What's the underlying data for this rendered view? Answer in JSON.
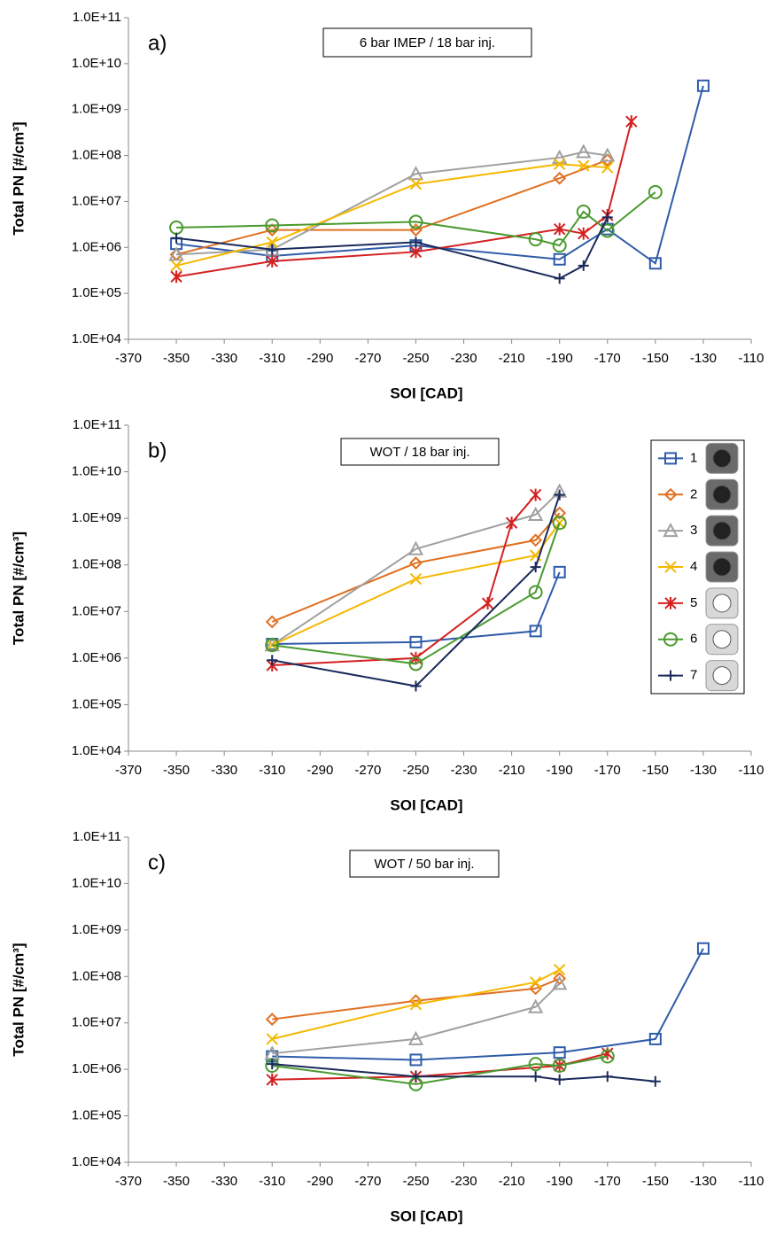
{
  "chart_data": [
    {
      "type": "line",
      "label": "a)",
      "annotation": "6 bar IMEP / 18 bar inj.",
      "xlabel": "SOI [CAD]",
      "ylabel": "Total PN [#/cm³]",
      "yscale": "log",
      "xlim": [
        -370,
        -110
      ],
      "xticks": [
        -370,
        -350,
        -330,
        -310,
        -290,
        -270,
        -250,
        -230,
        -210,
        -190,
        -170,
        -150,
        -130,
        -110
      ],
      "ylim": [
        10000,
        100000000000
      ],
      "yticks": [
        {
          "value": 10000,
          "label": "1.0E+04"
        },
        {
          "value": 100000,
          "label": "1.0E+05"
        },
        {
          "value": 1000000,
          "label": "1.0E+06"
        },
        {
          "value": 10000000,
          "label": "1.0E+07"
        },
        {
          "value": 100000000,
          "label": "1.0E+08"
        },
        {
          "value": 1000000000,
          "label": "1.0E+09"
        },
        {
          "value": 10000000000,
          "label": "1.0E+10"
        },
        {
          "value": 100000000000,
          "label": "1.0E+11"
        }
      ],
      "series": [
        {
          "color": "#2e5ca8",
          "marker": "square",
          "x": [
            -350,
            -310,
            -250,
            -190,
            -170,
            -150,
            -130
          ],
          "values": [
            1200000,
            650000,
            1100000,
            550000,
            2500000,
            450000,
            3300000000
          ]
        },
        {
          "color": "#e07020",
          "marker": "diamond",
          "x": [
            -350,
            -310,
            -250,
            -190,
            -170
          ],
          "values": [
            700000,
            2400000,
            2400000,
            32000000,
            80000000
          ]
        },
        {
          "color": "#a0a0a0",
          "marker": "triangle",
          "x": [
            -350,
            -310,
            -250,
            -190,
            -180,
            -170
          ],
          "values": [
            700000,
            900000,
            40000000,
            90000000,
            120000000,
            100000000
          ]
        },
        {
          "color": "#f5b800",
          "marker": "x",
          "x": [
            -350,
            -310,
            -250,
            -190,
            -180,
            -170
          ],
          "values": [
            400000,
            1300000,
            24000000,
            65000000,
            60000000,
            55000000
          ]
        },
        {
          "color": "#d42020",
          "marker": "asterisk",
          "x": [
            -350,
            -310,
            -250,
            -190,
            -180,
            -170,
            -160
          ],
          "values": [
            230000,
            500000,
            800000,
            2500000,
            2000000,
            5000000,
            550000000
          ]
        },
        {
          "color": "#4a9a30",
          "marker": "circle",
          "x": [
            -350,
            -310,
            -250,
            -200,
            -190,
            -180,
            -170,
            -150
          ],
          "values": [
            2700000,
            3000000,
            3600000,
            1500000,
            1100000,
            6000000,
            2300000,
            16000000
          ]
        },
        {
          "color": "#1a2a5a",
          "marker": "plus",
          "x": [
            -350,
            -310,
            -250,
            -190,
            -180,
            -170
          ],
          "values": [
            1600000,
            900000,
            1300000,
            210000,
            400000,
            4500000
          ]
        }
      ]
    },
    {
      "type": "line",
      "label": "b)",
      "annotation": "WOT / 18 bar inj.",
      "xlabel": "SOI [CAD]",
      "ylabel": "Total PN [#/cm³]",
      "yscale": "log",
      "legend": "upper right",
      "xlim": [
        -370,
        -110
      ],
      "xticks": [
        -370,
        -350,
        -330,
        -310,
        -290,
        -270,
        -250,
        -230,
        -210,
        -190,
        -170,
        -150,
        -130,
        -110
      ],
      "ylim": [
        10000,
        100000000000
      ],
      "yticks": [
        {
          "value": 10000,
          "label": "1.0E+04"
        },
        {
          "value": 100000,
          "label": "1.0E+05"
        },
        {
          "value": 1000000,
          "label": "1.0E+06"
        },
        {
          "value": 10000000,
          "label": "1.0E+07"
        },
        {
          "value": 100000000,
          "label": "1.0E+08"
        },
        {
          "value": 1000000000,
          "label": "1.0E+09"
        },
        {
          "value": 10000000000,
          "label": "1.0E+10"
        },
        {
          "value": 100000000000,
          "label": "1.0E+11"
        }
      ],
      "series": [
        {
          "name": "1",
          "color": "#2e5ca8",
          "marker": "square",
          "x": [
            -310,
            -250,
            -200,
            -190
          ],
          "values": [
            2000000,
            2200000,
            3800000,
            70000000
          ]
        },
        {
          "name": "2",
          "color": "#e07020",
          "marker": "diamond",
          "x": [
            -310,
            -250,
            -200,
            -190
          ],
          "values": [
            6000000,
            110000000,
            340000000,
            1300000000
          ]
        },
        {
          "name": "3",
          "color": "#a0a0a0",
          "marker": "triangle",
          "x": [
            -310,
            -250,
            -200,
            -190
          ],
          "values": [
            1900000,
            220000000,
            1200000000,
            3800000000
          ]
        },
        {
          "name": "4",
          "color": "#f5b800",
          "marker": "x",
          "x": [
            -310,
            -250,
            -200,
            -190
          ],
          "values": [
            1900000,
            50000000,
            160000000,
            800000000
          ]
        },
        {
          "name": "5",
          "color": "#d42020",
          "marker": "asterisk",
          "x": [
            -310,
            -250,
            -220,
            -210,
            -200
          ],
          "values": [
            700000,
            1000000,
            15000000,
            800000000,
            3200000000
          ]
        },
        {
          "name": "6",
          "color": "#4a9a30",
          "marker": "circle",
          "x": [
            -310,
            -250,
            -200,
            -190
          ],
          "values": [
            1900000,
            750000,
            26000000,
            800000000
          ]
        },
        {
          "name": "7",
          "color": "#1a2a5a",
          "marker": "plus",
          "x": [
            -310,
            -250,
            -200,
            -190
          ],
          "values": [
            900000,
            250000,
            90000000,
            3200000000
          ]
        }
      ]
    },
    {
      "type": "line",
      "label": "c)",
      "annotation": "WOT / 50 bar inj.",
      "xlabel": "SOI [CAD]",
      "ylabel": "Total PN [#/cm³]",
      "yscale": "log",
      "xlim": [
        -370,
        -110
      ],
      "xticks": [
        -370,
        -350,
        -330,
        -310,
        -290,
        -270,
        -250,
        -230,
        -210,
        -190,
        -170,
        -150,
        -130,
        -110
      ],
      "ylim": [
        10000,
        100000000000
      ],
      "yticks": [
        {
          "value": 10000,
          "label": "1.0E+04"
        },
        {
          "value": 100000,
          "label": "1.0E+05"
        },
        {
          "value": 1000000,
          "label": "1.0E+06"
        },
        {
          "value": 10000000,
          "label": "1.0E+07"
        },
        {
          "value": 100000000,
          "label": "1.0E+08"
        },
        {
          "value": 1000000000,
          "label": "1.0E+09"
        },
        {
          "value": 10000000000,
          "label": "1.0E+10"
        },
        {
          "value": 100000000000,
          "label": "1.0E+11"
        }
      ],
      "series": [
        {
          "color": "#2e5ca8",
          "marker": "square",
          "x": [
            -310,
            -250,
            -190,
            -150,
            -130
          ],
          "values": [
            1900000,
            1600000,
            2300000,
            4500000,
            400000000
          ]
        },
        {
          "color": "#e07020",
          "marker": "diamond",
          "x": [
            -310,
            -250,
            -200,
            -190
          ],
          "values": [
            12000000,
            30000000,
            55000000,
            90000000
          ]
        },
        {
          "color": "#a0a0a0",
          "marker": "triangle",
          "x": [
            -310,
            -250,
            -200,
            -190
          ],
          "values": [
            2200000,
            4500000,
            22000000,
            70000000
          ]
        },
        {
          "color": "#f5b800",
          "marker": "x",
          "x": [
            -310,
            -250,
            -200,
            -190
          ],
          "values": [
            4500000,
            25000000,
            75000000,
            140000000
          ]
        },
        {
          "color": "#d42020",
          "marker": "asterisk",
          "x": [
            -310,
            -250,
            -190,
            -170
          ],
          "values": [
            600000,
            700000,
            1200000,
            2200000
          ]
        },
        {
          "color": "#4a9a30",
          "marker": "circle",
          "x": [
            -310,
            -250,
            -200,
            -190,
            -170
          ],
          "values": [
            1200000,
            480000,
            1300000,
            1200000,
            1900000
          ]
        },
        {
          "color": "#1a2a5a",
          "marker": "plus",
          "x": [
            -310,
            -250,
            -200,
            -190,
            -170,
            -150
          ],
          "values": [
            1300000,
            700000,
            700000,
            600000,
            700000,
            550000
          ]
        }
      ]
    }
  ]
}
